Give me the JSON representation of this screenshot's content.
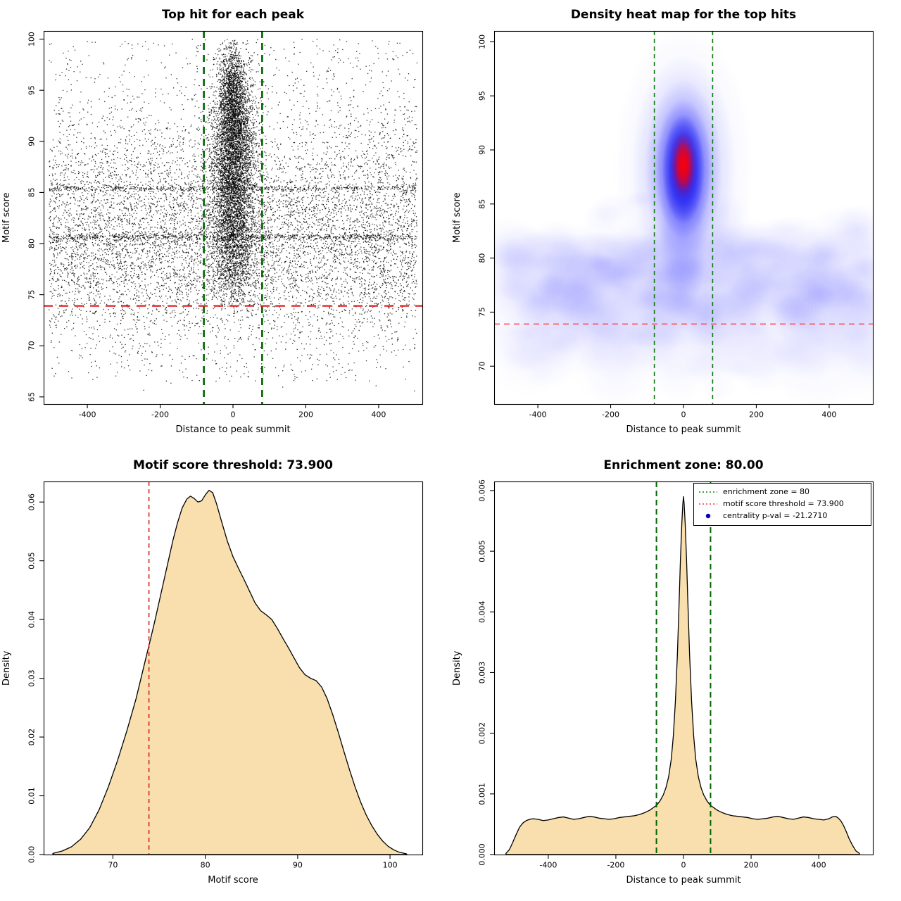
{
  "chart_data": [
    {
      "type": "scatter",
      "title": "Top hit for each peak",
      "xlabel": "Distance to peak summit",
      "ylabel": "Motif score",
      "xlim": [
        -520,
        520
      ],
      "ylim": [
        64.3,
        100.8
      ],
      "xticks": [
        -400,
        -200,
        0,
        200,
        400
      ],
      "xticklabels": [
        "-400",
        "-200",
        "0",
        "200",
        "400"
      ],
      "yticks": [
        65,
        70,
        75,
        80,
        85,
        90,
        95,
        100
      ],
      "yticklabels": [
        "65",
        "70",
        "75",
        "80",
        "85",
        "90",
        "95",
        "100"
      ],
      "point_color": "#000000",
      "hline": {
        "y": 73.9,
        "color": "#e02020",
        "width": 2.2,
        "dash": [
          13,
          9
        ]
      },
      "vlines": [
        {
          "x": -80,
          "color": "#006400",
          "width": 2.6,
          "dash": [
            10,
            7
          ]
        },
        {
          "x": 80,
          "color": "#006400",
          "width": 2.6,
          "dash": [
            10,
            7
          ]
        }
      ],
      "seed": 20,
      "points": {
        "background": {
          "n": 8800,
          "xrange": [
            -505,
            506
          ],
          "ymix": [
            [
              0.55,
              "n",
              79,
              4.3
            ],
            [
              0.27,
              "n",
              85.8,
              4.6
            ],
            [
              0.18,
              "u",
              66.5,
              100
            ]
          ]
        },
        "bands": [
          {
            "n": 520,
            "y": 85.4,
            "sd": 0.13
          },
          {
            "n": 650,
            "y": 80.65,
            "sd": 0.16
          }
        ],
        "cluster": {
          "n": 6200,
          "x_sd": 30,
          "ymix": [
            [
              0.48,
              "n",
              90,
              4.2
            ],
            [
              0.3,
              "n",
              85.5,
              5
            ],
            [
              0.22,
              "n",
              80,
              3.6
            ]
          ],
          "ymin": 73.8
        },
        "spike": {
          "n": 900,
          "x_sd": 15,
          "y": 94.8,
          "sd": 2.4
        }
      }
    },
    {
      "type": "heatmap",
      "title": "Density heat map for the top hits",
      "xlabel": "Distance to peak summit",
      "ylabel": "Motif score",
      "xlim": [
        -520,
        520
      ],
      "ylim": [
        66.5,
        101
      ],
      "xticks": [
        -400,
        -200,
        0,
        200,
        400
      ],
      "xticklabels": [
        "-400",
        "-200",
        "0",
        "200",
        "400"
      ],
      "yticks": [
        70,
        75,
        80,
        85,
        90,
        95,
        100
      ],
      "yticklabels": [
        "70",
        "75",
        "80",
        "85",
        "90",
        "95",
        "100"
      ],
      "hline": {
        "y": 73.9,
        "color": "#ff3b3b",
        "width": 1.3,
        "dash": [
          8,
          6
        ]
      },
      "vlines": [
        {
          "x": -80,
          "color": "#0e7a0e",
          "width": 1.6,
          "dash": [
            6,
            5
          ]
        },
        {
          "x": 80,
          "color": "#0e7a0e",
          "width": 1.6,
          "dash": [
            6,
            5
          ]
        }
      ],
      "seed": 9,
      "band": {
        "y": 77.8,
        "sd": 2.4,
        "n": 300,
        "alpha": 0.05
      },
      "band2": {
        "y": 72.8,
        "sd": 2.3,
        "n": 120,
        "alpha": 0.028
      },
      "hotspot": {
        "x": 0,
        "y": 88.2,
        "layers": [
          [
            100,
            205,
            "165,165,255",
            0.18
          ],
          [
            74,
            162,
            "125,125,255",
            0.3
          ],
          [
            55,
            128,
            "82,82,255",
            0.45
          ],
          [
            41,
            100,
            "38,38,250",
            0.62
          ],
          [
            30,
            78,
            "8,8,235",
            0.85
          ]
        ],
        "core": [
          [
            19,
            48,
            "225,0,45",
            0.8
          ],
          [
            13,
            36,
            "255,0,0",
            0.97
          ]
        ],
        "core_y": 88.6,
        "tail": [
          34,
          120,
          "115,115,255",
          0.32
        ],
        "tail_y": 82.5
      }
    },
    {
      "type": "density",
      "title": "Motif score threshold: 73.900",
      "xlabel": "Motif score",
      "ylabel": "Density",
      "xlim": [
        62.5,
        103.5
      ],
      "ylim": [
        0,
        0.0635
      ],
      "xticks": [
        70,
        80,
        90,
        100
      ],
      "xticklabels": [
        "70",
        "80",
        "90",
        "100"
      ],
      "yticks": [
        0,
        0.01,
        0.02,
        0.03,
        0.04,
        0.05,
        0.06
      ],
      "yticklabels": [
        "0.00",
        "0.01",
        "0.02",
        "0.03",
        "0.04",
        "0.05",
        "0.06"
      ],
      "fill": "#f8dfad",
      "stroke": "#000000",
      "vlines": [
        {
          "x": 73.9,
          "color": "#d42222",
          "width": 1.6,
          "dash": [
            6,
            5
          ]
        }
      ],
      "curve": [
        [
          63.5,
          0.0002
        ],
        [
          64.5,
          0.0006
        ],
        [
          65.5,
          0.0013
        ],
        [
          66.5,
          0.0026
        ],
        [
          67.5,
          0.0046
        ],
        [
          68.5,
          0.0076
        ],
        [
          69.5,
          0.0115
        ],
        [
          70.5,
          0.016
        ],
        [
          71.5,
          0.021
        ],
        [
          72.5,
          0.0265
        ],
        [
          73.5,
          0.033
        ],
        [
          74,
          0.0362
        ],
        [
          74.5,
          0.0395
        ],
        [
          75,
          0.043
        ],
        [
          75.5,
          0.0465
        ],
        [
          76,
          0.05
        ],
        [
          76.5,
          0.0535
        ],
        [
          77,
          0.0565
        ],
        [
          77.5,
          0.059
        ],
        [
          78,
          0.0605
        ],
        [
          78.4,
          0.061
        ],
        [
          78.8,
          0.0606
        ],
        [
          79.2,
          0.06
        ],
        [
          79.6,
          0.0602
        ],
        [
          80,
          0.0612
        ],
        [
          80.4,
          0.062
        ],
        [
          80.8,
          0.0616
        ],
        [
          81.2,
          0.0598
        ],
        [
          81.8,
          0.0565
        ],
        [
          82.4,
          0.0533
        ],
        [
          83,
          0.0507
        ],
        [
          83.6,
          0.0487
        ],
        [
          84.2,
          0.0468
        ],
        [
          84.8,
          0.0448
        ],
        [
          85.4,
          0.0428
        ],
        [
          86,
          0.0415
        ],
        [
          86.6,
          0.0408
        ],
        [
          87.2,
          0.04
        ],
        [
          87.8,
          0.0385
        ],
        [
          88.4,
          0.0368
        ],
        [
          89,
          0.0352
        ],
        [
          89.6,
          0.0335
        ],
        [
          90.2,
          0.0318
        ],
        [
          90.8,
          0.0306
        ],
        [
          91.4,
          0.03
        ],
        [
          92,
          0.0296
        ],
        [
          92.6,
          0.0285
        ],
        [
          93.2,
          0.0265
        ],
        [
          93.8,
          0.0238
        ],
        [
          94.4,
          0.0208
        ],
        [
          95,
          0.0176
        ],
        [
          95.6,
          0.0145
        ],
        [
          96.2,
          0.0116
        ],
        [
          96.8,
          0.009
        ],
        [
          97.4,
          0.0068
        ],
        [
          98,
          0.005
        ],
        [
          98.6,
          0.0035
        ],
        [
          99.2,
          0.0023
        ],
        [
          99.8,
          0.0014
        ],
        [
          100.4,
          0.0008
        ],
        [
          101,
          0.0004
        ],
        [
          101.8,
          0.0001
        ]
      ]
    },
    {
      "type": "density",
      "title": "Enrichment zone: 80.00",
      "xlabel": "Distance to peak summit",
      "ylabel": "Density",
      "xlim": [
        -560,
        560
      ],
      "ylim": [
        0,
        0.00615
      ],
      "xticks": [
        -400,
        -200,
        0,
        200,
        400
      ],
      "xticklabels": [
        "-400",
        "-200",
        "0",
        "200",
        "400"
      ],
      "yticks": [
        0,
        0.001,
        0.002,
        0.003,
        0.004,
        0.005,
        0.006
      ],
      "yticklabels": [
        "0.000",
        "0.001",
        "0.002",
        "0.003",
        "0.004",
        "0.005",
        "0.006"
      ],
      "fill": "#f8dfad",
      "stroke": "#000000",
      "vlines": [
        {
          "x": -80,
          "color": "#006400",
          "width": 2,
          "dash": [
            8,
            5
          ]
        },
        {
          "x": 80,
          "color": "#006400",
          "width": 2,
          "dash": [
            8,
            5
          ]
        }
      ],
      "legend": {
        "items": [
          {
            "label": "enrichment zone = 80",
            "type": "line",
            "color": "#008000",
            "dash": [
              2,
              3
            ]
          },
          {
            "label": "motif score threshold = 73.900",
            "type": "line",
            "color": "#ee3333",
            "dash": [
              2,
              3
            ]
          },
          {
            "label": "centrality p-val = -21.2710",
            "type": "point",
            "color": "#0000cd"
          }
        ]
      },
      "curve": [
        [
          -525,
          2e-05
        ],
        [
          -515,
          8e-05
        ],
        [
          -505,
          0.0002
        ],
        [
          -495,
          0.00033
        ],
        [
          -485,
          0.00045
        ],
        [
          -475,
          0.00052
        ],
        [
          -465,
          0.00056
        ],
        [
          -455,
          0.00058
        ],
        [
          -445,
          0.00059
        ],
        [
          -430,
          0.00058
        ],
        [
          -415,
          0.00056
        ],
        [
          -400,
          0.00057
        ],
        [
          -385,
          0.00059
        ],
        [
          -370,
          0.00061
        ],
        [
          -355,
          0.00062
        ],
        [
          -340,
          0.0006
        ],
        [
          -325,
          0.00058
        ],
        [
          -310,
          0.00059
        ],
        [
          -295,
          0.00061
        ],
        [
          -280,
          0.00063
        ],
        [
          -265,
          0.00062
        ],
        [
          -250,
          0.0006
        ],
        [
          -235,
          0.00059
        ],
        [
          -220,
          0.00058
        ],
        [
          -205,
          0.00059
        ],
        [
          -190,
          0.00061
        ],
        [
          -175,
          0.00062
        ],
        [
          -160,
          0.00063
        ],
        [
          -145,
          0.00064
        ],
        [
          -130,
          0.00066
        ],
        [
          -115,
          0.00069
        ],
        [
          -100,
          0.00073
        ],
        [
          -90,
          0.00077
        ],
        [
          -80,
          0.00081
        ],
        [
          -70,
          0.00088
        ],
        [
          -60,
          0.00098
        ],
        [
          -52,
          0.0011
        ],
        [
          -44,
          0.00128
        ],
        [
          -36,
          0.00158
        ],
        [
          -30,
          0.00196
        ],
        [
          -24,
          0.00252
        ],
        [
          -18,
          0.0033
        ],
        [
          -13,
          0.00415
        ],
        [
          -9,
          0.00487
        ],
        [
          -5,
          0.00545
        ],
        [
          -2,
          0.00578
        ],
        [
          0,
          0.0059
        ],
        [
          2,
          0.00578
        ],
        [
          5,
          0.00545
        ],
        [
          9,
          0.00487
        ],
        [
          13,
          0.00415
        ],
        [
          18,
          0.0033
        ],
        [
          24,
          0.00252
        ],
        [
          30,
          0.00196
        ],
        [
          36,
          0.00158
        ],
        [
          44,
          0.00128
        ],
        [
          52,
          0.0011
        ],
        [
          60,
          0.00098
        ],
        [
          70,
          0.00088
        ],
        [
          80,
          0.00081
        ],
        [
          90,
          0.00077
        ],
        [
          100,
          0.00073
        ],
        [
          115,
          0.00069
        ],
        [
          130,
          0.00066
        ],
        [
          145,
          0.00064
        ],
        [
          160,
          0.00063
        ],
        [
          175,
          0.00062
        ],
        [
          190,
          0.00061
        ],
        [
          205,
          0.00059
        ],
        [
          220,
          0.00058
        ],
        [
          235,
          0.00059
        ],
        [
          250,
          0.0006
        ],
        [
          265,
          0.00062
        ],
        [
          280,
          0.00063
        ],
        [
          295,
          0.00061
        ],
        [
          310,
          0.00059
        ],
        [
          325,
          0.00058
        ],
        [
          340,
          0.0006
        ],
        [
          355,
          0.00062
        ],
        [
          370,
          0.00061
        ],
        [
          385,
          0.00059
        ],
        [
          400,
          0.00058
        ],
        [
          415,
          0.00057
        ],
        [
          430,
          0.00059
        ],
        [
          440,
          0.00062
        ],
        [
          450,
          0.00063
        ],
        [
          458,
          0.0006
        ],
        [
          466,
          0.00055
        ],
        [
          474,
          0.00047
        ],
        [
          482,
          0.00037
        ],
        [
          490,
          0.00026
        ],
        [
          500,
          0.00015
        ],
        [
          510,
          6e-05
        ],
        [
          520,
          2e-05
        ]
      ]
    }
  ]
}
